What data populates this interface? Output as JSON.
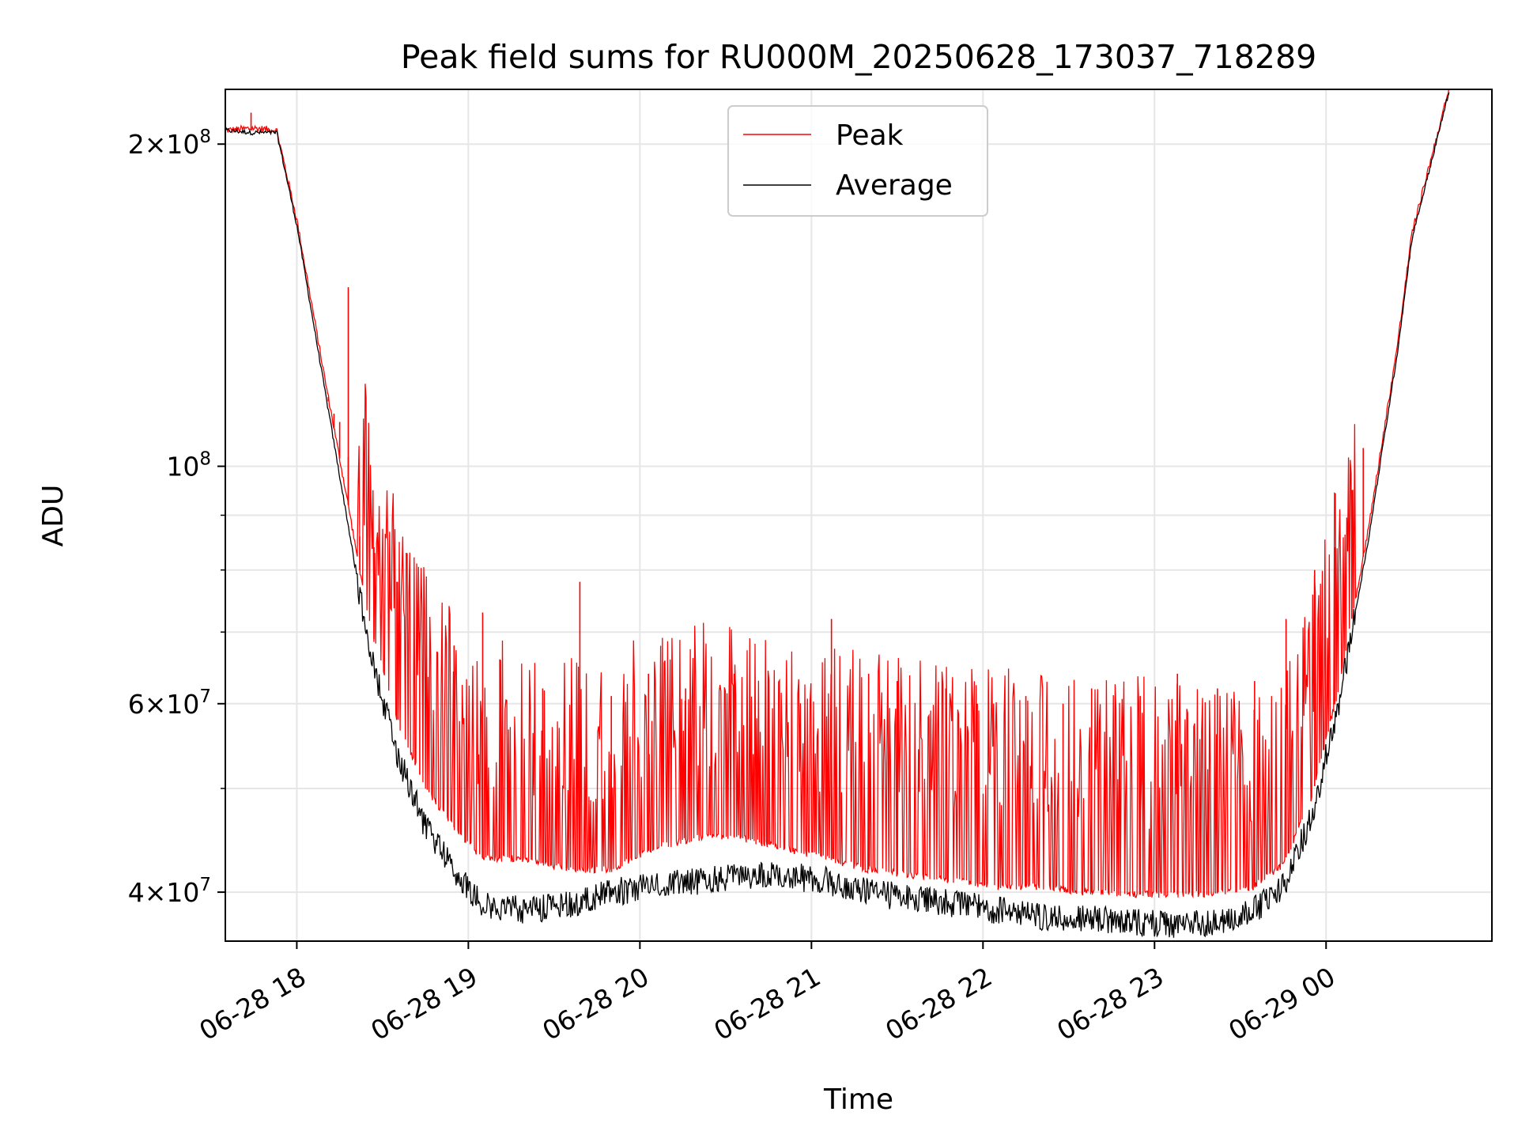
{
  "chart_data": {
    "type": "line",
    "title": "Peak field sums for RU000M_20250628_173037_718289",
    "xlabel": "Time",
    "ylabel": "ADU",
    "yscale": "log",
    "grid": true,
    "legend_position": "top-center",
    "xlim": [
      "2025-06-28 17:35",
      "2025-06-29 00:58"
    ],
    "ylim": [
      36000000,
      225000000
    ],
    "x_ticks": [
      {
        "value": "2025-06-28 18:00",
        "label": "06-28 18"
      },
      {
        "value": "2025-06-28 19:00",
        "label": "06-28 19"
      },
      {
        "value": "2025-06-28 20:00",
        "label": "06-28 20"
      },
      {
        "value": "2025-06-28 21:00",
        "label": "06-28 21"
      },
      {
        "value": "2025-06-28 22:00",
        "label": "06-28 22"
      },
      {
        "value": "2025-06-28 23:00",
        "label": "06-28 23"
      },
      {
        "value": "2025-06-29 00:00",
        "label": "06-29 00"
      }
    ],
    "y_major_ticks": [
      {
        "value": 40000000,
        "mant": "4",
        "exp": "7"
      },
      {
        "value": 60000000,
        "mant": "6",
        "exp": "7"
      },
      {
        "value": 100000000,
        "mant": "",
        "exp": "8"
      },
      {
        "value": 200000000,
        "mant": "2",
        "exp": "8"
      }
    ],
    "y_minor_ticks": [
      50000000,
      70000000,
      80000000,
      90000000
    ],
    "series": [
      {
        "name": "Peak",
        "color": "#ff0000",
        "x": [
          "2025-06-28 17:35",
          "2025-06-28 17:45",
          "2025-06-28 17:53",
          "2025-06-28 18:00",
          "2025-06-28 18:10",
          "2025-06-28 18:18",
          "2025-06-28 18:25",
          "2025-06-28 18:35",
          "2025-06-28 18:45",
          "2025-06-28 18:55",
          "2025-06-28 19:05",
          "2025-06-28 19:20",
          "2025-06-28 19:35",
          "2025-06-28 19:50",
          "2025-06-28 20:05",
          "2025-06-28 20:20",
          "2025-06-28 20:35",
          "2025-06-28 20:50",
          "2025-06-28 21:05",
          "2025-06-28 21:20",
          "2025-06-28 21:35",
          "2025-06-28 21:50",
          "2025-06-28 22:05",
          "2025-06-28 22:20",
          "2025-06-28 22:35",
          "2025-06-28 22:50",
          "2025-06-28 23:05",
          "2025-06-28 23:20",
          "2025-06-28 23:35",
          "2025-06-28 23:45",
          "2025-06-28 23:55",
          "2025-06-29 00:05",
          "2025-06-29 00:15",
          "2025-06-29 00:25",
          "2025-06-29 00:30",
          "2025-06-29 00:38",
          "2025-06-29 00:43"
        ],
        "values": [
          206000000,
          207000000,
          206000000,
          170000000,
          120000000,
          92000000,
          72000000,
          58000000,
          50000000,
          46000000,
          43000000,
          43000000,
          42000000,
          42000000,
          44000000,
          45000000,
          45000000,
          44000000,
          43000000,
          42000000,
          41500000,
          41000000,
          40500000,
          40500000,
          40000000,
          39800000,
          39800000,
          39800000,
          40500000,
          42500000,
          49000000,
          63000000,
          88000000,
          130000000,
          165000000,
          200000000,
          225000000
        ],
        "spike_peaks": [
          {
            "x": "2025-06-28 17:44",
            "y": 214000000
          },
          {
            "x": "2025-06-28 18:18",
            "y": 147000000
          },
          {
            "x": "2025-06-28 18:18",
            "y": 102000000
          },
          {
            "x": "2025-06-28 18:11",
            "y": 115000000
          },
          {
            "x": "2025-06-28 18:13",
            "y": 112000000
          },
          {
            "x": "2025-06-28 18:15",
            "y": 110000000
          },
          {
            "x": "2025-06-28 18:22",
            "y": 86000000
          },
          {
            "x": "2025-06-28 18:27",
            "y": 84000000
          },
          {
            "x": "2025-06-28 18:35",
            "y": 78000000
          },
          {
            "x": "2025-06-28 18:43",
            "y": 70000000
          },
          {
            "x": "2025-06-28 18:55",
            "y": 68000000
          },
          {
            "x": "2025-06-28 19:05",
            "y": 73000000
          },
          {
            "x": "2025-06-28 19:11",
            "y": 66000000
          },
          {
            "x": "2025-06-28 19:26",
            "y": 62000000
          },
          {
            "x": "2025-06-28 19:39",
            "y": 78000000
          },
          {
            "x": "2025-06-28 19:50",
            "y": 61000000
          },
          {
            "x": "2025-06-28 20:03",
            "y": 64000000
          },
          {
            "x": "2025-06-28 20:16",
            "y": 62000000
          },
          {
            "x": "2025-06-28 20:33",
            "y": 64000000
          },
          {
            "x": "2025-06-28 20:45",
            "y": 62000000
          },
          {
            "x": "2025-06-28 21:07",
            "y": 72000000
          },
          {
            "x": "2025-06-28 21:20",
            "y": 64000000
          },
          {
            "x": "2025-06-28 21:30",
            "y": 63000000
          },
          {
            "x": "2025-06-28 21:47",
            "y": 62000000
          },
          {
            "x": "2025-06-28 21:58",
            "y": 60000000
          },
          {
            "x": "2025-06-28 22:15",
            "y": 61000000
          },
          {
            "x": "2025-06-28 22:28",
            "y": 60000000
          },
          {
            "x": "2025-06-28 22:38",
            "y": 62000000
          },
          {
            "x": "2025-06-28 22:55",
            "y": 61000000
          },
          {
            "x": "2025-06-28 23:08",
            "y": 64000000
          },
          {
            "x": "2025-06-28 23:22",
            "y": 62000000
          },
          {
            "x": "2025-06-28 23:35",
            "y": 63000000
          },
          {
            "x": "2025-06-28 23:46",
            "y": 72000000
          },
          {
            "x": "2025-06-28 23:56",
            "y": 80000000
          },
          {
            "x": "2025-06-29 00:03",
            "y": 84000000
          },
          {
            "x": "2025-06-29 00:09",
            "y": 95000000
          },
          {
            "x": "2025-06-29 00:13",
            "y": 104000000
          }
        ]
      },
      {
        "name": "Average",
        "color": "#000000",
        "x": [
          "2025-06-28 17:35",
          "2025-06-28 17:45",
          "2025-06-28 17:53",
          "2025-06-28 18:00",
          "2025-06-28 18:10",
          "2025-06-28 18:18",
          "2025-06-28 18:25",
          "2025-06-28 18:35",
          "2025-06-28 18:45",
          "2025-06-28 18:55",
          "2025-06-28 19:05",
          "2025-06-28 19:20",
          "2025-06-28 19:35",
          "2025-06-28 19:50",
          "2025-06-28 20:05",
          "2025-06-28 20:20",
          "2025-06-28 20:35",
          "2025-06-28 20:50",
          "2025-06-28 21:05",
          "2025-06-28 21:20",
          "2025-06-28 21:35",
          "2025-06-28 21:50",
          "2025-06-28 22:05",
          "2025-06-28 22:20",
          "2025-06-28 22:35",
          "2025-06-28 22:50",
          "2025-06-28 23:05",
          "2025-06-28 23:20",
          "2025-06-28 23:35",
          "2025-06-28 23:45",
          "2025-06-28 23:55",
          "2025-06-29 00:05",
          "2025-06-29 00:15",
          "2025-06-29 00:25",
          "2025-06-29 00:30",
          "2025-06-29 00:38",
          "2025-06-29 00:43"
        ],
        "values": [
          206000000,
          205000000,
          205000000,
          168000000,
          117000000,
          88000000,
          68000000,
          54000000,
          46000000,
          42000000,
          39000000,
          38500000,
          39000000,
          40000000,
          40500000,
          41000000,
          41500000,
          41500000,
          41000000,
          40000000,
          39500000,
          39000000,
          38500000,
          38000000,
          37800000,
          37500000,
          37300000,
          37500000,
          38500000,
          40500000,
          47000000,
          61000000,
          86000000,
          128000000,
          163000000,
          198000000,
          224000000
        ]
      }
    ]
  }
}
